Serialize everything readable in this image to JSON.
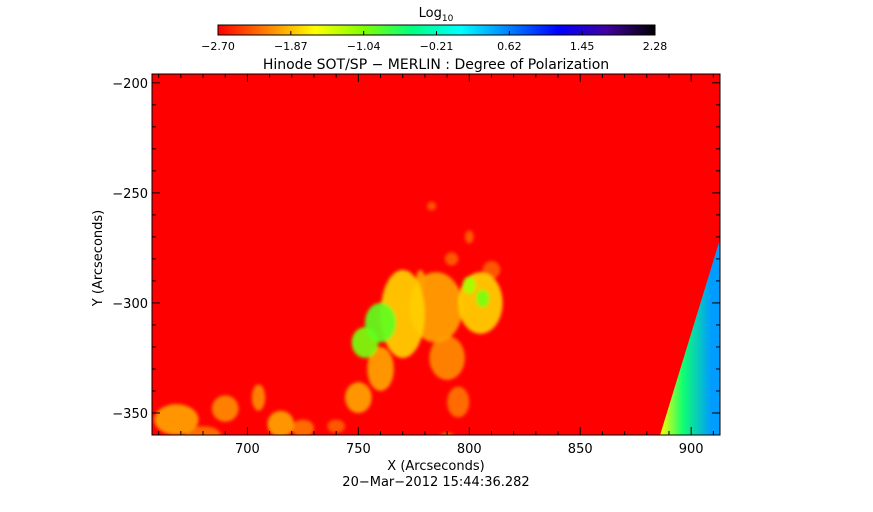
{
  "chart_data": {
    "type": "heatmap",
    "title": "Hinode SOT/SP − MERLIN : Degree of Polarization",
    "xlabel": "X (Arcseconds)",
    "ylabel": "Y (Arcseconds)",
    "timestamp": "20−Mar−2012 15:44:36.282",
    "xlim": [
      657,
      913
    ],
    "ylim": [
      -360,
      -196
    ],
    "x_ticks": [
      700,
      750,
      800,
      850,
      900
    ],
    "x_tick_labels": [
      "700",
      "750",
      "800",
      "850",
      "900"
    ],
    "y_ticks": [
      -200,
      -250,
      -300,
      -350
    ],
    "y_tick_labels": [
      "−200",
      "−250",
      "−300",
      "−350"
    ],
    "colorbar": {
      "label_base": "Log",
      "label_sub": "10",
      "range": [
        -2.7,
        2.28
      ],
      "ticks": [
        -2.7,
        -1.87,
        -1.04,
        -0.21,
        0.62,
        1.45,
        2.28
      ],
      "tick_labels": [
        "−2.70",
        "−1.87",
        "−1.04",
        "−0.21",
        "0.62",
        "1.45",
        "2.28"
      ],
      "colors": [
        "#ff0000",
        "#ff8000",
        "#ffff00",
        "#80ff00",
        "#00ff80",
        "#00ffff",
        "#0080ff",
        "#0000ff",
        "#4000a0",
        "#000000"
      ]
    },
    "background_value": -2.7,
    "regions": [
      {
        "x": 760,
        "y": -309,
        "rx": 7,
        "ry": 9,
        "value": -0.9
      },
      {
        "x": 753,
        "y": -318,
        "rx": 6,
        "ry": 7,
        "value": -1.0
      },
      {
        "x": 806,
        "y": -298,
        "rx": 3,
        "ry": 4,
        "value": -1.0
      },
      {
        "x": 800,
        "y": -292,
        "rx": 3,
        "ry": 4,
        "value": -1.2
      },
      {
        "x": 770,
        "y": -305,
        "rx": 10,
        "ry": 20,
        "value": -1.8
      },
      {
        "x": 805,
        "y": -300,
        "rx": 10,
        "ry": 14,
        "value": -1.8
      },
      {
        "x": 785,
        "y": -302,
        "rx": 12,
        "ry": 16,
        "value": -2.0
      },
      {
        "x": 760,
        "y": -330,
        "rx": 6,
        "ry": 10,
        "value": -2.0
      },
      {
        "x": 750,
        "y": -343,
        "rx": 6,
        "ry": 7,
        "value": -2.0
      },
      {
        "x": 790,
        "y": -325,
        "rx": 8,
        "ry": 10,
        "value": -2.1
      },
      {
        "x": 795,
        "y": -345,
        "rx": 5,
        "ry": 7,
        "value": -2.2
      },
      {
        "x": 790,
        "y": -362,
        "rx": 4,
        "ry": 3,
        "value": -2.2
      },
      {
        "x": 668,
        "y": -353,
        "rx": 10,
        "ry": 7,
        "value": -2.0
      },
      {
        "x": 690,
        "y": -348,
        "rx": 6,
        "ry": 6,
        "value": -2.1
      },
      {
        "x": 705,
        "y": -343,
        "rx": 3,
        "ry": 6,
        "value": -2.1
      },
      {
        "x": 715,
        "y": -355,
        "rx": 6,
        "ry": 6,
        "value": -2.0
      },
      {
        "x": 725,
        "y": -357,
        "rx": 5,
        "ry": 4,
        "value": -2.2
      },
      {
        "x": 680,
        "y": -360,
        "rx": 8,
        "ry": 4,
        "value": -2.2
      },
      {
        "x": 740,
        "y": -356,
        "rx": 4,
        "ry": 3,
        "value": -2.3
      },
      {
        "x": 810,
        "y": -285,
        "rx": 4,
        "ry": 4,
        "value": -2.3
      },
      {
        "x": 792,
        "y": -280,
        "rx": 3,
        "ry": 3,
        "value": -2.3
      },
      {
        "x": 778,
        "y": -290,
        "rx": 2,
        "ry": 5,
        "value": -2.0
      },
      {
        "x": 783,
        "y": -256,
        "rx": 2,
        "ry": 2,
        "value": -2.3
      },
      {
        "x": 800,
        "y": -270,
        "rx": 2,
        "ry": 3,
        "value": -2.3
      }
    ],
    "limb_edge": {
      "points": [
        [
          886,
          -360
        ],
        [
          913,
          -271
        ]
      ],
      "inner_value": -1.6,
      "outer_value": 0.5,
      "width": 23
    }
  }
}
